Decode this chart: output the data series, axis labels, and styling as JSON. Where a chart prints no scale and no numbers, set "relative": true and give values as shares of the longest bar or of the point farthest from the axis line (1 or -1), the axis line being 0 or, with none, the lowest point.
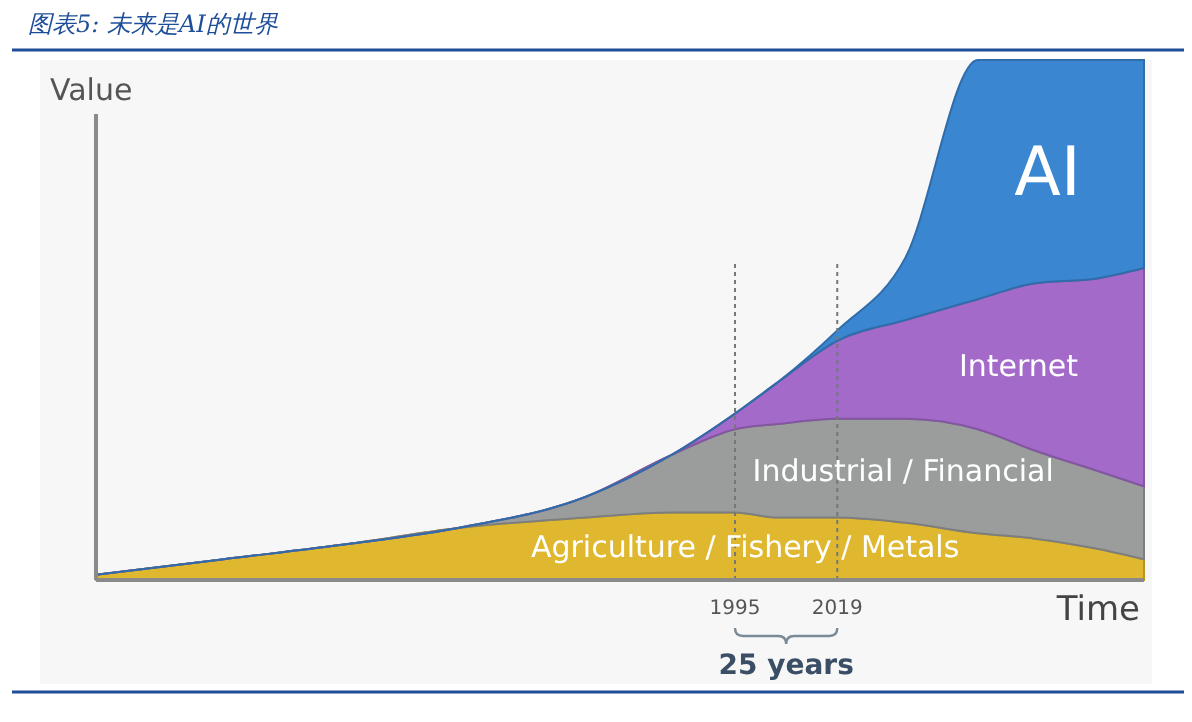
{
  "chart_data": {
    "type": "area",
    "stacked": true,
    "relative": true,
    "title": "图表5: 未来是AI的世界",
    "xlabel": "Time",
    "ylabel": "Value",
    "x": [
      1845,
      1875,
      1905,
      1930,
      1960,
      1980,
      1995,
      2005,
      2019,
      2035,
      2052,
      2065,
      2080,
      2091
    ],
    "xlim": [
      1845,
      2091
    ],
    "xticks": [
      1995,
      2019
    ],
    "series": [
      {
        "name": "Agriculture / Fishery / Metals",
        "color": "#e0b830",
        "values": [
          0.01,
          0.04,
          0.07,
          0.1,
          0.12,
          0.13,
          0.13,
          0.12,
          0.12,
          0.11,
          0.09,
          0.08,
          0.06,
          0.04
        ]
      },
      {
        "name": "Industrial / Financial",
        "color": "#9b9d9d",
        "values": [
          0,
          0,
          0,
          0,
          0.04,
          0.11,
          0.16,
          0.18,
          0.19,
          0.2,
          0.2,
          0.17,
          0.15,
          0.14
        ]
      },
      {
        "name": "Internet",
        "color": "#a36ac9",
        "values": [
          0,
          0,
          0,
          0,
          0,
          0,
          0.03,
          0.08,
          0.15,
          0.19,
          0.25,
          0.32,
          0.37,
          0.42
        ]
      },
      {
        "name": "AI",
        "color": "#3a86d1",
        "values": [
          0,
          0,
          0,
          0,
          0,
          0,
          0,
          0,
          0.02,
          0.12,
          0.46,
          0.43,
          0.42,
          0.4
        ]
      }
    ],
    "ref_lines": [
      {
        "axis": "x",
        "value": 1995,
        "line_style": "dotted",
        "color": "#777777"
      },
      {
        "axis": "x",
        "value": 2019,
        "line_style": "dotted",
        "color": "#777777"
      }
    ],
    "annotations": [
      "25 years"
    ]
  }
}
